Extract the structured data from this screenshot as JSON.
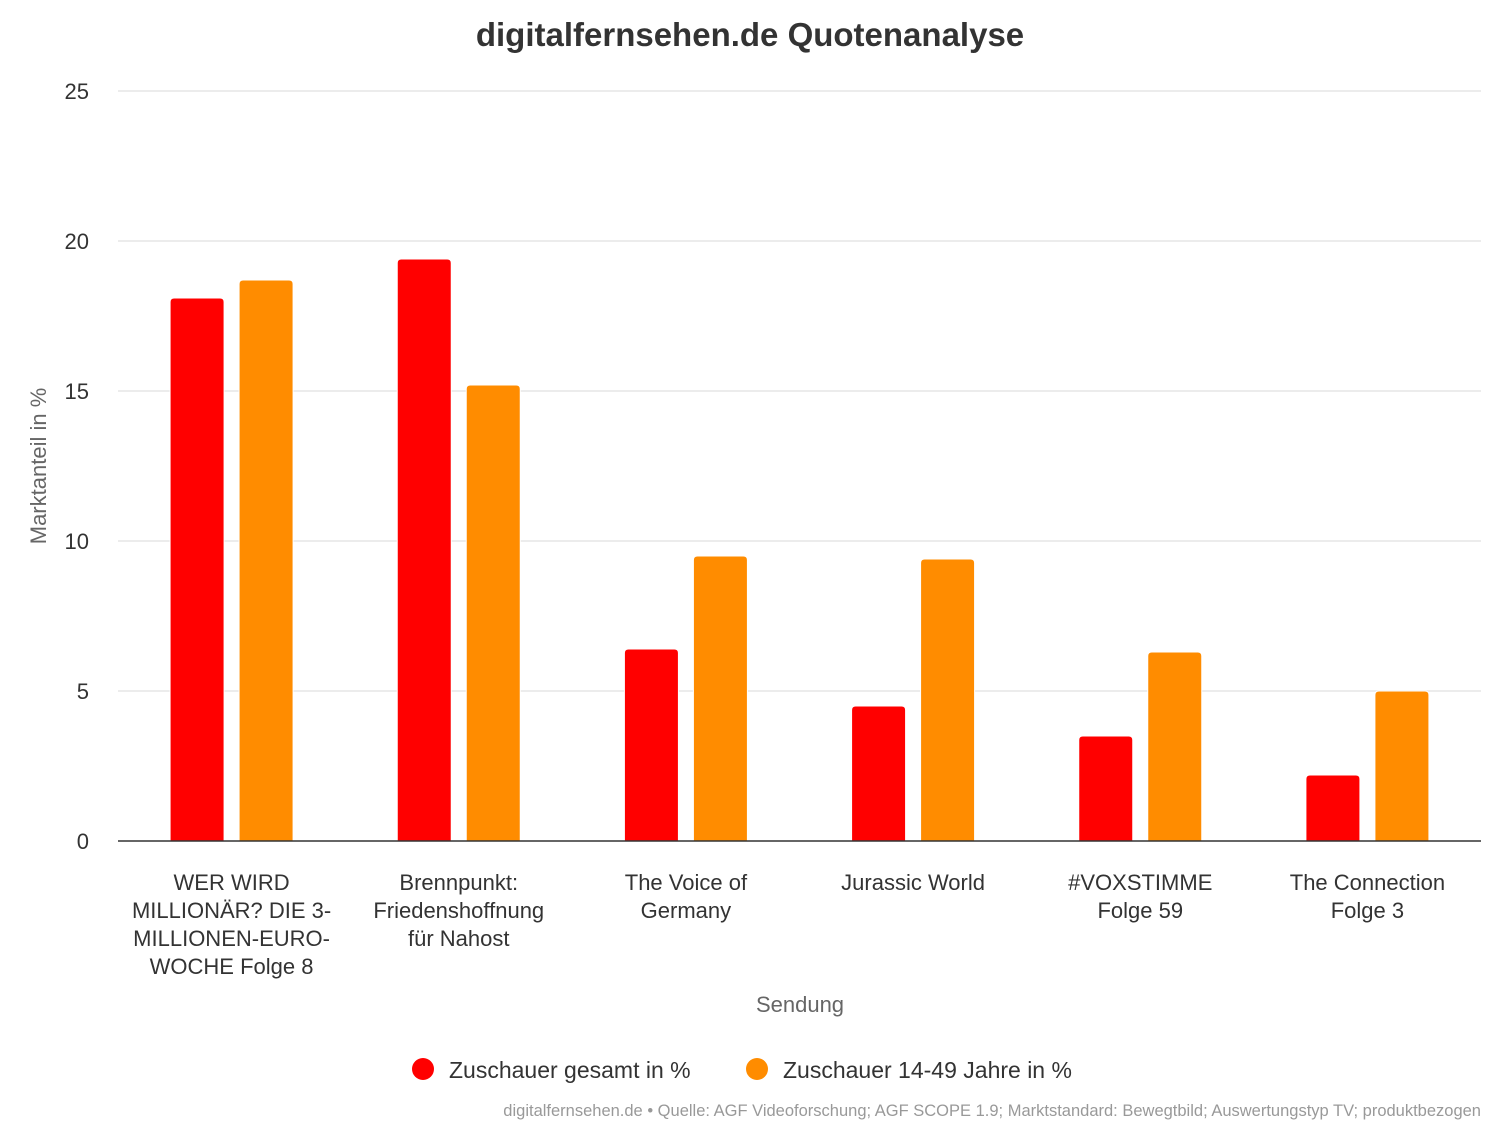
{
  "chart_data": {
    "type": "bar",
    "title": "digitalfernsehen.de Quotenanalyse",
    "xlabel": "Sendung",
    "ylabel": "Marktanteil in %",
    "ylim": [
      0,
      25
    ],
    "yticks": [
      0,
      5,
      10,
      15,
      20,
      25
    ],
    "grid": true,
    "legend_position": "bottom-center",
    "categories": [
      [
        "WER WIRD",
        "MILLIONÄR? DIE 3-",
        "MILLIONEN-EURO-",
        "WOCHE Folge 8"
      ],
      [
        "Brennpunkt:",
        "Friedenshoffnung",
        "für Nahost"
      ],
      [
        "The Voice of",
        "Germany"
      ],
      [
        "Jurassic World"
      ],
      [
        "#VOXSTIMME",
        "Folge 59"
      ],
      [
        "The Connection",
        "Folge 3"
      ]
    ],
    "series": [
      {
        "name": "Zuschauer gesamt in %",
        "color": "#ff0000",
        "values": [
          18.1,
          19.4,
          6.4,
          4.5,
          3.5,
          2.2
        ]
      },
      {
        "name": "Zuschauer 14-49 Jahre in %",
        "color": "#ff8c00",
        "values": [
          18.7,
          15.2,
          9.5,
          9.4,
          6.3,
          5.0
        ]
      }
    ],
    "credits": "digitalfernsehen.de • Quelle: AGF Videoforschung; AGF SCOPE 1.9; Marktstandard: Bewegtbild; Auswertungstyp TV; produktbezogen"
  }
}
